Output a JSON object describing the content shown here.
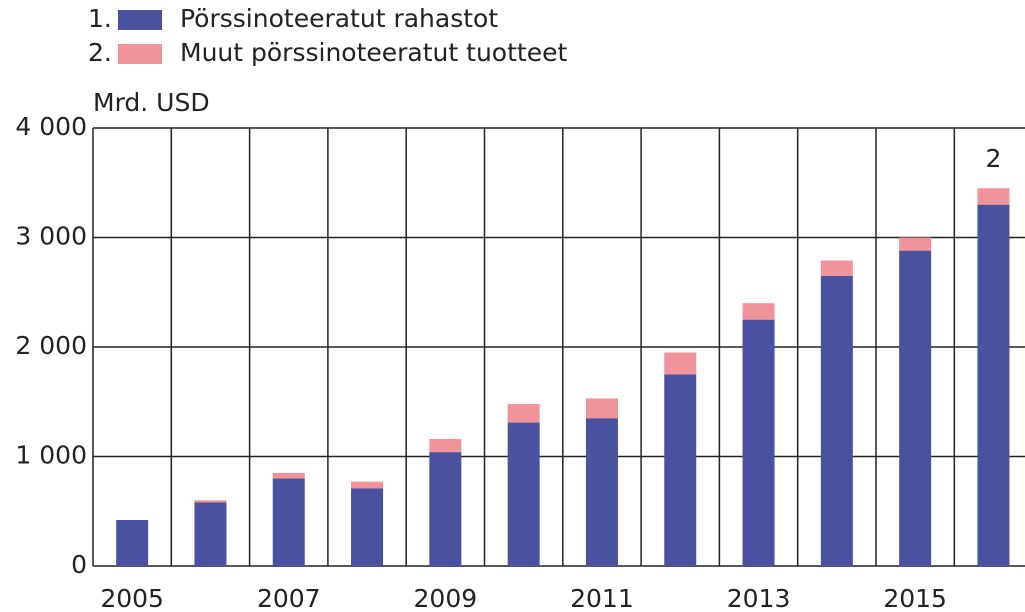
{
  "chart_data": {
    "type": "bar",
    "stacked": true,
    "y_label": "Mrd. USD",
    "categories": [
      "2005",
      null,
      "2007",
      null,
      "2009",
      null,
      "2011",
      null,
      "2013",
      null,
      "2015",
      null
    ],
    "series": [
      {
        "name": "Pörssinoteeratut rahastot",
        "legend_number": "1.",
        "color": "#4a52a0",
        "values": [
          420,
          580,
          800,
          710,
          1040,
          1310,
          1350,
          1750,
          2250,
          2650,
          2880,
          3300
        ]
      },
      {
        "name": "Muut pörssinoteeratut tuotteet",
        "legend_number": "2.",
        "color": "#f0939a",
        "values": [
          0,
          20,
          50,
          60,
          120,
          170,
          180,
          200,
          150,
          140,
          120,
          150
        ]
      }
    ],
    "annotations": [
      "2",
      "1"
    ],
    "ylim": [
      0,
      4000
    ],
    "yticks": [
      0,
      {
        "value": 1000,
        "label": "1 000"
      },
      {
        "value": 2000,
        "label": "2 000"
      },
      {
        "value": 3000,
        "label": "3 000"
      },
      {
        "value": 4000,
        "label": "4 000"
      }
    ],
    "grid": true
  }
}
